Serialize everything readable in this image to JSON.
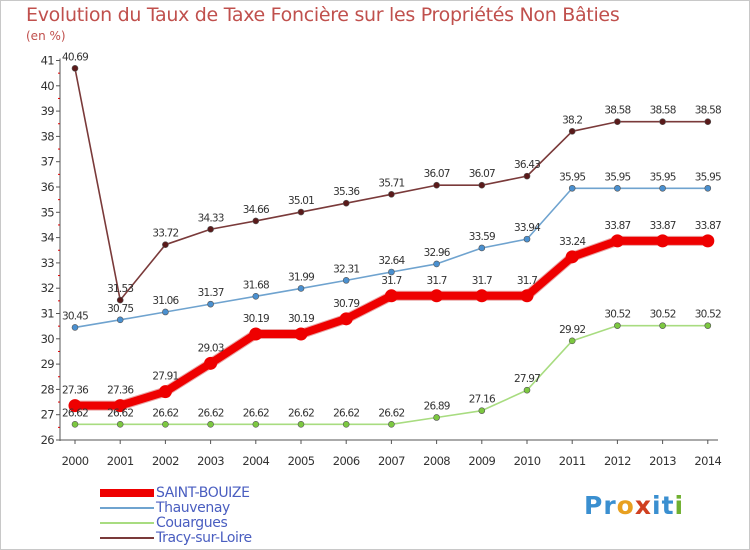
{
  "title": "Evolution du Taux de Taxe Foncière sur les Propriétés Non Bâties",
  "unit": "(en %)",
  "logo": {
    "text": "Proxiti",
    "letters": [
      {
        "ch": "P",
        "color": "#3a8fd0"
      },
      {
        "ch": "r",
        "color": "#3a8fd0"
      },
      {
        "ch": "o",
        "color": "#e8a020"
      },
      {
        "ch": "x",
        "color": "#d04020"
      },
      {
        "ch": "i",
        "color": "#3a8fd0"
      },
      {
        "ch": "t",
        "color": "#3a8fd0"
      },
      {
        "ch": "i",
        "color": "#70b030"
      }
    ]
  },
  "chart_data": {
    "type": "line",
    "title": "Evolution du Taux de Taxe Foncière sur les Propriétés Non Bâties",
    "ylabel": "(en %)",
    "xlabel": "",
    "x": [
      "2000",
      "2001",
      "2002",
      "2003",
      "2004",
      "2005",
      "2006",
      "2007",
      "2008",
      "2009",
      "2010",
      "2011",
      "2012",
      "2013",
      "2014"
    ],
    "ylim": [
      26,
      41
    ],
    "yticks": [
      26,
      27,
      28,
      29,
      30,
      31,
      32,
      33,
      34,
      35,
      36,
      37,
      38,
      39,
      40,
      41
    ],
    "grid": false,
    "legend_position": "bottom-left",
    "series": [
      {
        "name": "SAINT-BOUIZE",
        "color": "#ee0000",
        "marker": "#ee0000",
        "width": 8,
        "values": [
          27.36,
          27.36,
          27.91,
          29.03,
          30.19,
          30.19,
          30.79,
          31.7,
          31.7,
          31.7,
          31.7,
          33.24,
          33.87,
          33.87,
          33.87
        ],
        "labels": [
          "27.36",
          "27.36",
          "27.91",
          "29.03",
          "30.19",
          "30.19",
          "30.79",
          "31.7",
          "31.7",
          "31.7",
          "31.7",
          "33.24",
          "33.87",
          "33.87",
          "33.87"
        ]
      },
      {
        "name": "Thauvenay",
        "color": "#6fa3cf",
        "marker": "#4a90d0",
        "width": 1.6,
        "values": [
          30.45,
          30.75,
          31.06,
          31.37,
          31.68,
          31.99,
          32.31,
          32.64,
          32.96,
          33.59,
          33.94,
          35.95,
          35.95,
          35.95,
          35.95
        ],
        "labels": [
          "30.45",
          "30.75",
          "31.06",
          "31.37",
          "31.68",
          "31.99",
          "32.31",
          "32.64",
          "32.96",
          "33.59",
          "33.94",
          "35.95",
          "35.95",
          "35.95",
          "35.95"
        ]
      },
      {
        "name": "Couargues",
        "color": "#a8dc80",
        "marker": "#7cc840",
        "width": 1.6,
        "values": [
          26.62,
          26.62,
          26.62,
          26.62,
          26.62,
          26.62,
          26.62,
          26.62,
          26.89,
          27.16,
          27.97,
          29.92,
          30.52,
          30.52,
          30.52
        ],
        "labels": [
          "26.62",
          "26.62",
          "26.62",
          "26.62",
          "26.62",
          "26.62",
          "26.62",
          "26.62",
          "26.89",
          "27.16",
          "27.97",
          "29.92",
          "30.52",
          "30.52",
          "30.52"
        ]
      },
      {
        "name": "Tracy-sur-Loire",
        "color": "#7a3a3a",
        "marker": "#5a1a1a",
        "width": 1.6,
        "values": [
          40.69,
          31.53,
          33.72,
          34.33,
          34.66,
          35.01,
          35.36,
          35.71,
          36.07,
          36.07,
          36.43,
          38.2,
          38.58,
          38.58,
          38.58
        ],
        "labels": [
          "40.69",
          "31.53",
          "33.72",
          "34.33",
          "34.66",
          "35.01",
          "35.36",
          "35.71",
          "36.07",
          "36.07",
          "36.43",
          "38.2",
          "38.58",
          "38.58",
          "38.58"
        ]
      }
    ]
  }
}
